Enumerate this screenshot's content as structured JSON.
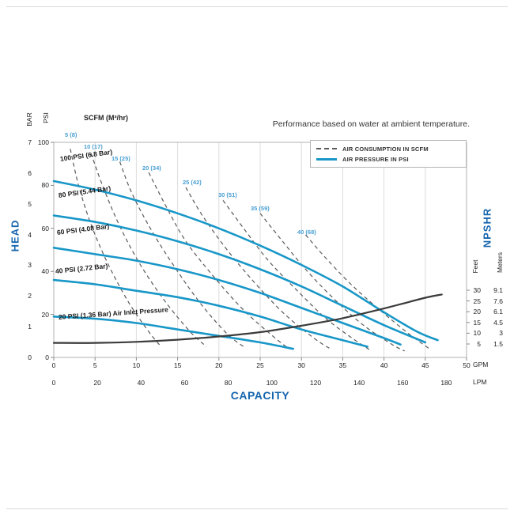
{
  "chart_data": {
    "type": "line",
    "title": "Performance based on water at ambient temperature.",
    "scfm_header": "SCFM (M³/hr)",
    "x_axis": {
      "label": "CAPACITY",
      "primary_unit": "GPM",
      "secondary_unit": "LPM",
      "gpm_ticks": [
        0,
        5,
        10,
        15,
        20,
        25,
        30,
        35,
        40,
        45,
        50
      ],
      "lpm_ticks": [
        0,
        20,
        40,
        60,
        80,
        100,
        120,
        140,
        160,
        180
      ],
      "gpm_range": [
        0,
        50
      ]
    },
    "y_axis": {
      "label": "HEAD",
      "primary_unit": "PSI",
      "secondary_unit": "BAR",
      "psi_ticks": [
        0,
        20,
        40,
        60,
        80,
        100
      ],
      "bar_ticks": [
        0,
        1,
        2,
        3,
        4,
        5,
        6,
        7
      ],
      "psi_range": [
        0,
        100
      ]
    },
    "right_axis": {
      "label": "NPSHR",
      "feet_unit": "Feet",
      "meters_unit": "Meters",
      "feet_ticks": [
        30,
        25,
        20,
        15,
        10,
        5
      ],
      "meters_ticks": [
        9.1,
        7.6,
        6.1,
        4.5,
        3,
        1.5
      ]
    },
    "legend": [
      {
        "label": "AIR CONSUMPTION IN SCFM",
        "style": "dashed"
      },
      {
        "label": "AIR PRESSURE IN PSI",
        "style": "solid"
      }
    ],
    "air_pressure_curves": [
      {
        "label": "100 PSI (6.8 Bar)",
        "points_gpm_psi": [
          [
            0,
            82
          ],
          [
            5,
            78
          ],
          [
            10,
            73
          ],
          [
            15,
            67
          ],
          [
            20,
            60
          ],
          [
            25,
            52
          ],
          [
            30,
            43
          ],
          [
            35,
            33
          ],
          [
            40,
            21
          ],
          [
            44,
            12
          ],
          [
            46.5,
            8
          ]
        ]
      },
      {
        "label": "80 PSI (5.44 Bar)",
        "points_gpm_psi": [
          [
            0,
            66
          ],
          [
            5,
            63
          ],
          [
            10,
            59
          ],
          [
            15,
            54
          ],
          [
            20,
            48
          ],
          [
            25,
            41
          ],
          [
            30,
            33
          ],
          [
            35,
            24
          ],
          [
            40,
            15
          ],
          [
            45,
            7
          ]
        ]
      },
      {
        "label": "60 PSI (4.08 Bar)",
        "points_gpm_psi": [
          [
            0,
            51
          ],
          [
            5,
            48
          ],
          [
            10,
            45
          ],
          [
            15,
            41
          ],
          [
            20,
            36
          ],
          [
            25,
            30
          ],
          [
            30,
            23
          ],
          [
            35,
            16
          ],
          [
            40,
            9
          ],
          [
            42,
            6
          ]
        ]
      },
      {
        "label": "40 PSI (2.72 Bar)",
        "points_gpm_psi": [
          [
            0,
            36
          ],
          [
            5,
            34
          ],
          [
            10,
            31
          ],
          [
            15,
            28
          ],
          [
            20,
            24
          ],
          [
            25,
            19
          ],
          [
            30,
            13
          ],
          [
            35,
            8
          ],
          [
            38,
            5
          ]
        ]
      },
      {
        "label": "20 PSI (1.36 Bar) Air Inlet Pressure",
        "points_gpm_psi": [
          [
            0,
            19
          ],
          [
            5,
            18
          ],
          [
            10,
            16
          ],
          [
            15,
            13
          ],
          [
            20,
            10
          ],
          [
            25,
            7
          ],
          [
            29,
            4
          ]
        ]
      }
    ],
    "air_consumption_curves": [
      {
        "label": "5 (8)",
        "points_gpm_psi": [
          [
            2,
            97
          ],
          [
            3,
            80
          ],
          [
            4.5,
            62
          ],
          [
            6.5,
            44
          ],
          [
            9,
            26
          ],
          [
            11.5,
            12
          ],
          [
            13,
            5
          ]
        ]
      },
      {
        "label": "10 (17)",
        "points_gpm_psi": [
          [
            4.5,
            95
          ],
          [
            6,
            79
          ],
          [
            8,
            61
          ],
          [
            10.5,
            43
          ],
          [
            13.5,
            26
          ],
          [
            16.5,
            12
          ],
          [
            18.5,
            5
          ]
        ]
      },
      {
        "label": "15 (25)",
        "points_gpm_psi": [
          [
            8,
            91
          ],
          [
            9.5,
            76
          ],
          [
            12,
            58
          ],
          [
            15,
            40
          ],
          [
            18,
            24
          ],
          [
            21,
            11
          ],
          [
            23,
            5
          ]
        ]
      },
      {
        "label": "20 (34)",
        "points_gpm_psi": [
          [
            11.5,
            86
          ],
          [
            13.5,
            71
          ],
          [
            16,
            54
          ],
          [
            19.5,
            37
          ],
          [
            23,
            22
          ],
          [
            26.5,
            10
          ],
          [
            28.5,
            4
          ]
        ]
      },
      {
        "label": "25 (42)",
        "points_gpm_psi": [
          [
            16,
            79
          ],
          [
            18,
            66
          ],
          [
            21,
            50
          ],
          [
            24.5,
            34
          ],
          [
            28,
            20
          ],
          [
            31.5,
            9
          ],
          [
            33.5,
            4
          ]
        ]
      },
      {
        "label": "30 (51)",
        "points_gpm_psi": [
          [
            20.5,
            73
          ],
          [
            23,
            60
          ],
          [
            26,
            45
          ],
          [
            29.5,
            31
          ],
          [
            33,
            18
          ],
          [
            36.5,
            8
          ],
          [
            38.5,
            3
          ]
        ]
      },
      {
        "label": "35 (59)",
        "points_gpm_psi": [
          [
            25,
            67
          ],
          [
            27.5,
            55
          ],
          [
            30.5,
            41
          ],
          [
            34,
            27
          ],
          [
            37.5,
            15
          ],
          [
            41,
            6
          ],
          [
            42.5,
            3
          ]
        ]
      },
      {
        "label": "40 (68)",
        "points_gpm_psi": [
          [
            30.5,
            57
          ],
          [
            33,
            46
          ],
          [
            36,
            34
          ],
          [
            39.5,
            22
          ],
          [
            43,
            11
          ],
          [
            45.5,
            4
          ]
        ]
      }
    ],
    "npshr_curve": {
      "unit": "feet",
      "points_gpm_feet": [
        [
          0,
          5.5
        ],
        [
          5,
          5.5
        ],
        [
          10,
          6
        ],
        [
          15,
          7
        ],
        [
          20,
          8.5
        ],
        [
          25,
          10.5
        ],
        [
          30,
          13.5
        ],
        [
          35,
          17
        ],
        [
          40,
          21.5
        ],
        [
          45,
          26.5
        ],
        [
          47,
          28
        ]
      ]
    },
    "colors": {
      "air_pressure": "#1897c8",
      "air_consumption": "#5a5a5a",
      "npshr": "#3b3b3b",
      "axis_title_blue": "#1565ae",
      "scfm_label_blue": "#4aa0d4"
    }
  }
}
